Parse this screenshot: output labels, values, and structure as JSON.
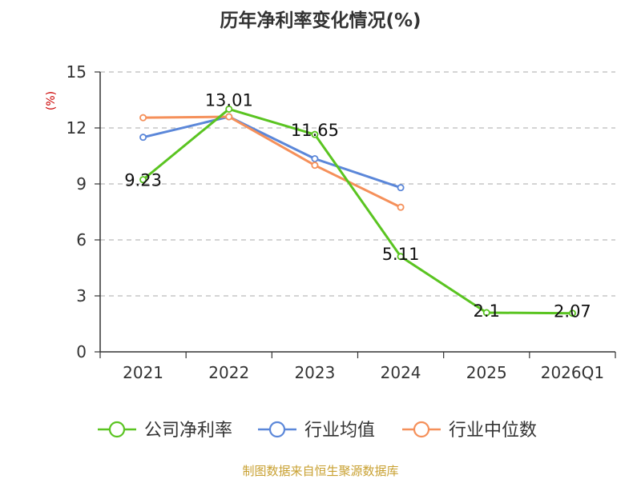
{
  "chart_data": {
    "type": "line",
    "title": "历年净利率变化情况(%)",
    "ylabel": "(%)",
    "xlabel": "",
    "ylim": [
      0,
      15
    ],
    "yticks": [
      0,
      3,
      6,
      9,
      12,
      15
    ],
    "categories": [
      "2021",
      "2022",
      "2023",
      "2024",
      "2025",
      "2026Q1"
    ],
    "grid": true,
    "legend_position": "bottom",
    "series": [
      {
        "name": "公司净利率",
        "color": "#5ac421",
        "values": [
          9.23,
          13.01,
          11.65,
          5.11,
          2.1,
          2.07
        ],
        "labels": [
          "9.23",
          "13.01",
          "11.65",
          "5.11",
          "2.1",
          "2.07"
        ]
      },
      {
        "name": "行业均值",
        "color": "#5b87d9",
        "values": [
          11.5,
          12.6,
          10.35,
          8.8,
          null,
          null
        ]
      },
      {
        "name": "行业中位数",
        "color": "#f5905a",
        "values": [
          12.55,
          12.6,
          10.0,
          7.75,
          null,
          null
        ]
      }
    ],
    "source": "制图数据来自恒生聚源数据库"
  },
  "colors": {
    "ylabel": "#cc0000",
    "source": "#c8a030",
    "grid": "#bbbbbb",
    "axis": "#333333"
  }
}
